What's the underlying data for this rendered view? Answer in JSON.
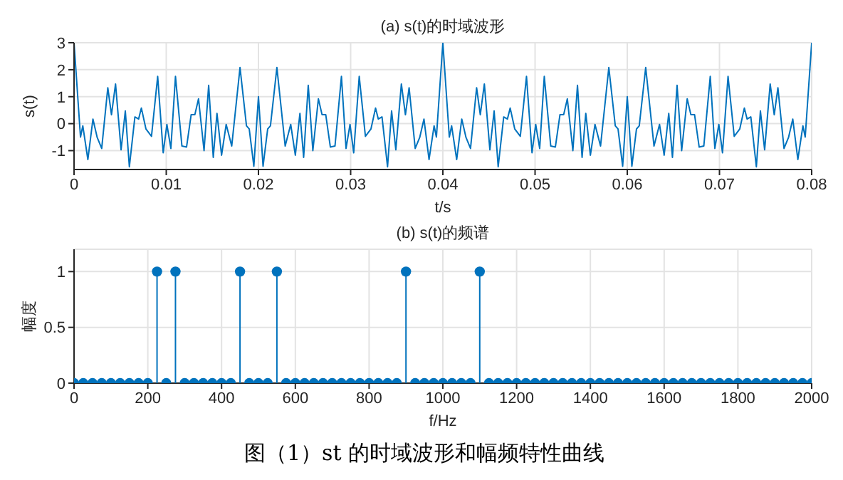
{
  "chart_data": [
    {
      "type": "line",
      "title": "(a) s(t)的时域波形",
      "xlabel": "t/s",
      "ylabel": "s(t)",
      "xlim": [
        0,
        0.08
      ],
      "xticks": [
        0,
        0.01,
        0.02,
        0.03,
        0.04,
        0.05,
        0.06,
        0.07,
        0.08
      ],
      "ylim": [
        -1.7,
        3
      ],
      "yticks": [
        -1,
        0,
        1,
        2,
        3
      ],
      "grid": true,
      "marker": "none",
      "line_style": "solid",
      "series": [
        {
          "color": "#0072bd",
          "x": [
            0,
            0.0007,
            0.00095,
            0.0015,
            0.00205,
            0.0025,
            0.003,
            0.00366,
            0.00406,
            0.0045,
            0.0051,
            0.00556,
            0.006,
            0.0066,
            0.007,
            0.0073,
            0.0078,
            0.0084,
            0.00907,
            0.00967,
            0.01007,
            0.0105,
            0.011,
            0.0117,
            0.0122,
            0.0127,
            0.0131,
            0.0135,
            0.0141,
            0.0146,
            0.0151,
            0.0155,
            0.016,
            0.0165,
            0.0171,
            0.018,
            0.0187,
            0.019,
            0.0195,
            0.02,
            0.0205,
            0.021,
            0.0213,
            0.022,
            0.0229,
            0.0235,
            0.024,
            0.0245,
            0.0249,
            0.0254,
            0.0259,
            0.0265,
            0.0269,
            0.0273,
            0.0278,
            0.0283,
            0.029,
            0.0295,
            0.02993,
            0.03033,
            0.03093,
            0.0316,
            0.0322,
            0.0327,
            0.033,
            0.0334,
            0.034,
            0.03444,
            0.0349,
            0.0355,
            0.03594,
            0.03634,
            0.037,
            0.0375,
            0.03795,
            0.0385,
            0.03905,
            0.0393,
            0.04,
            0.0407,
            0.04095,
            0.0415,
            0.04205,
            0.0425,
            0.043,
            0.04366,
            0.04406,
            0.0445,
            0.0451,
            0.04556,
            0.046,
            0.0466,
            0.047,
            0.0473,
            0.0478,
            0.0484,
            0.04907,
            0.04967,
            0.05007,
            0.0505,
            0.051,
            0.0517,
            0.0522,
            0.0527,
            0.0531,
            0.0535,
            0.0541,
            0.0546,
            0.0551,
            0.0555,
            0.056,
            0.0565,
            0.0571,
            0.058,
            0.0587,
            0.059,
            0.0595,
            0.06,
            0.0605,
            0.061,
            0.0613,
            0.062,
            0.0629,
            0.0635,
            0.064,
            0.0645,
            0.0649,
            0.0654,
            0.0659,
            0.0665,
            0.0669,
            0.0673,
            0.0678,
            0.0683,
            0.069,
            0.0695,
            0.06993,
            0.07033,
            0.07093,
            0.0716,
            0.0722,
            0.0727,
            0.073,
            0.0734,
            0.074,
            0.07444,
            0.0749,
            0.0755,
            0.07594,
            0.07634,
            0.077,
            0.0775,
            0.07795,
            0.0785,
            0.07905,
            0.0793,
            0.08
          ],
          "values": [
            3,
            -0.5,
            -0.08,
            -1.33,
            0.17,
            -0.5,
            -0.92,
            1.33,
            0.33,
            1.47,
            -0.97,
            0.47,
            -1.6,
            0.25,
            0.17,
            0.58,
            -0.2,
            -0.47,
            1.75,
            -1.08,
            -0.03,
            -0.92,
            1.75,
            -0.83,
            -0.87,
            0.33,
            0.33,
            0.92,
            -1.0,
            1.42,
            -1.25,
            0.38,
            -1.17,
            -0.03,
            -0.83,
            2.08,
            -0.08,
            -0.2,
            -1.58,
            1.0,
            -1.58,
            -0.2,
            -0.08,
            2.08,
            -0.83,
            -0.03,
            -1.17,
            0.38,
            -1.25,
            1.42,
            -1.0,
            0.92,
            0.33,
            0.33,
            -0.87,
            -0.83,
            1.75,
            -0.92,
            -0.03,
            -1.08,
            1.75,
            -0.47,
            -0.2,
            0.58,
            0.17,
            0.25,
            -1.6,
            0.47,
            -0.97,
            1.47,
            0.33,
            1.33,
            -0.92,
            -0.5,
            0.17,
            -1.33,
            -0.08,
            -0.5,
            3,
            -0.5,
            -0.08,
            -1.33,
            0.17,
            -0.5,
            -0.92,
            1.33,
            0.33,
            1.47,
            -0.97,
            0.47,
            -1.6,
            0.25,
            0.17,
            0.58,
            -0.2,
            -0.47,
            1.75,
            -1.08,
            -0.03,
            -0.92,
            1.75,
            -0.83,
            -0.87,
            0.33,
            0.33,
            0.92,
            -1.0,
            1.42,
            -1.25,
            0.38,
            -1.17,
            -0.03,
            -0.83,
            2.08,
            -0.08,
            -0.2,
            -1.58,
            1.0,
            -1.58,
            -0.2,
            -0.08,
            2.08,
            -0.83,
            -0.03,
            -1.17,
            0.38,
            -1.25,
            1.42,
            -1.0,
            0.92,
            0.33,
            0.33,
            -0.87,
            -0.83,
            1.75,
            -0.92,
            -0.03,
            -1.08,
            1.75,
            -0.47,
            -0.2,
            0.58,
            0.17,
            0.25,
            -1.6,
            0.47,
            -0.97,
            1.47,
            0.33,
            1.33,
            -0.92,
            -0.5,
            0.17,
            -1.33,
            -0.08,
            -0.5,
            3
          ]
        }
      ]
    },
    {
      "type": "lollipop",
      "title": "(b) s(t)的频谱",
      "xlabel": "f/Hz",
      "ylabel": "幅度",
      "xlim": [
        0,
        2000
      ],
      "xticks": [
        0,
        200,
        400,
        600,
        800,
        1000,
        1200,
        1400,
        1600,
        1800,
        2000
      ],
      "ylim": [
        0,
        1.2
      ],
      "yticks": [
        0,
        0.5,
        1
      ],
      "grid": true,
      "marker": "circle",
      "annotations": [
        "图（1）st 的时域波形和幅频特性曲线"
      ],
      "series": [
        {
          "color": "#0072bd",
          "x": [
            0,
            25,
            50,
            75,
            100,
            125,
            150,
            175,
            200,
            225,
            250,
            275,
            300,
            325,
            350,
            375,
            400,
            425,
            450,
            475,
            500,
            525,
            550,
            575,
            600,
            625,
            650,
            675,
            700,
            725,
            750,
            775,
            800,
            825,
            850,
            875,
            900,
            925,
            950,
            975,
            1000,
            1025,
            1050,
            1075,
            1100,
            1125,
            1150,
            1175,
            1200,
            1225,
            1250,
            1275,
            1300,
            1325,
            1350,
            1375,
            1400,
            1425,
            1450,
            1475,
            1500,
            1525,
            1550,
            1575,
            1600,
            1625,
            1650,
            1675,
            1700,
            1725,
            1750,
            1775,
            1800,
            1825,
            1850,
            1875,
            1900,
            1925,
            1950,
            1975,
            2000
          ],
          "values": [
            0,
            0,
            0,
            0,
            0,
            0,
            0,
            0,
            0,
            1,
            0,
            1,
            0,
            0,
            0,
            0,
            0,
            0,
            1,
            0,
            0,
            0,
            1,
            0,
            0,
            0,
            0,
            0,
            0,
            0,
            0,
            0,
            0,
            0,
            0,
            0,
            1,
            0,
            0,
            0,
            0,
            0,
            0,
            0,
            1,
            0,
            0,
            0,
            0,
            0,
            0,
            0,
            0,
            0,
            0,
            0,
            0,
            0,
            0,
            0,
            0,
            0,
            0,
            0,
            0,
            0,
            0,
            0,
            0,
            0,
            0,
            0,
            0,
            0,
            0,
            0,
            0,
            0,
            0,
            0,
            0
          ]
        }
      ]
    }
  ]
}
